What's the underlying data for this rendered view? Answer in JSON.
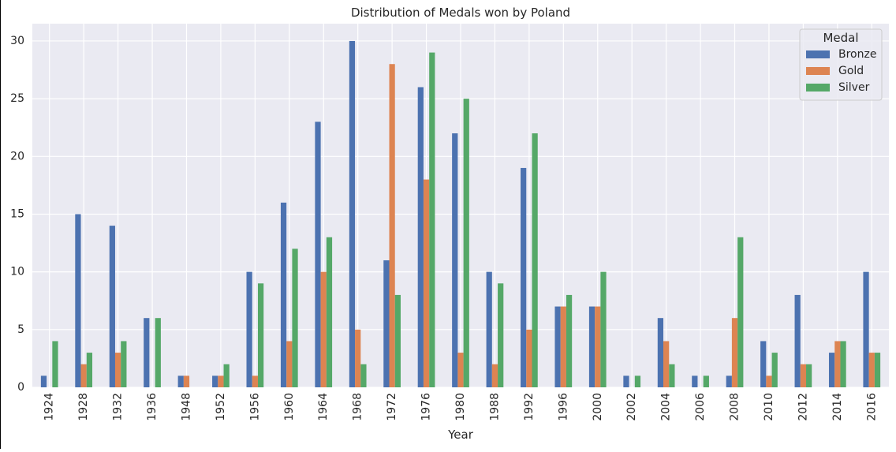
{
  "chart_data": {
    "type": "bar",
    "title": "Distribution of Medals won by Poland",
    "xlabel": "Year",
    "ylabel": "",
    "ylim": [
      0,
      31.5
    ],
    "yticks": [
      0,
      5,
      10,
      15,
      20,
      25,
      30
    ],
    "grid": true,
    "legend": {
      "title": "Medal",
      "placement": "top-right"
    },
    "categories": [
      "1924",
      "1928",
      "1932",
      "1936",
      "1948",
      "1952",
      "1956",
      "1960",
      "1964",
      "1968",
      "1972",
      "1976",
      "1980",
      "1988",
      "1992",
      "1996",
      "2000",
      "2002",
      "2004",
      "2006",
      "2008",
      "2010",
      "2012",
      "2014",
      "2016"
    ],
    "series": [
      {
        "name": "Bronze",
        "color": "#4c72b0",
        "values": [
          1,
          15,
          14,
          6,
          1,
          1,
          10,
          16,
          23,
          30,
          11,
          26,
          22,
          10,
          19,
          7,
          7,
          1,
          6,
          1,
          1,
          4,
          8,
          3,
          10
        ]
      },
      {
        "name": "Gold",
        "color": "#dd8452",
        "values": [
          0,
          2,
          3,
          0,
          1,
          1,
          1,
          4,
          10,
          5,
          28,
          18,
          3,
          2,
          5,
          7,
          7,
          0,
          4,
          0,
          6,
          1,
          2,
          4,
          3
        ]
      },
      {
        "name": "Silver",
        "color": "#55a868",
        "values": [
          4,
          3,
          4,
          6,
          0,
          2,
          9,
          12,
          13,
          2,
          8,
          29,
          25,
          9,
          22,
          8,
          10,
          1,
          2,
          1,
          13,
          3,
          2,
          4,
          3
        ]
      }
    ]
  }
}
